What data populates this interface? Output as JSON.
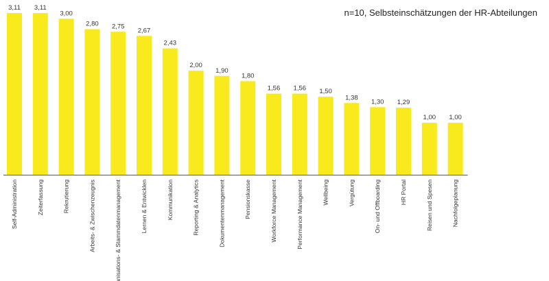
{
  "chart_data": {
    "type": "bar",
    "title": "n=10, Selbsteinschätzungen der HR-Abteilungen",
    "xlabel": "",
    "ylabel": "",
    "ylim": [
      0,
      3.2
    ],
    "grid": false,
    "legend": "none",
    "bar_color": "#f9ea1e",
    "categories": [
      "Self-Administration",
      "Zeiterfassung",
      "Rekrutierung",
      "Arbeits- & Zwischenzeugnis",
      "Organisations- & Stammdatenmanagement",
      "Lernen & Entwicklen",
      "Kommunikation",
      "Reporting & Analytics",
      "Dokumentenmanagement",
      "Pensionskasse",
      "Workforce Management",
      "Performance Management",
      "Wellbeing",
      "Vergütung",
      "On- und Offboarding",
      "HR Portal",
      "Reisen und Spesen",
      "Nachfolgeplanung"
    ],
    "values": [
      3.11,
      3.11,
      3.0,
      2.8,
      2.75,
      2.67,
      2.43,
      2.0,
      1.9,
      1.8,
      1.56,
      1.56,
      1.5,
      1.38,
      1.3,
      1.29,
      1.0,
      1.0
    ],
    "value_labels": [
      "3,11",
      "3,11",
      "3,00",
      "2,80",
      "2,75",
      "2,67",
      "2,43",
      "2,00",
      "1,90",
      "1,80",
      "1,56",
      "1,56",
      "1,50",
      "1,38",
      "1,30",
      "1,29",
      "1,00",
      "1,00"
    ]
  }
}
